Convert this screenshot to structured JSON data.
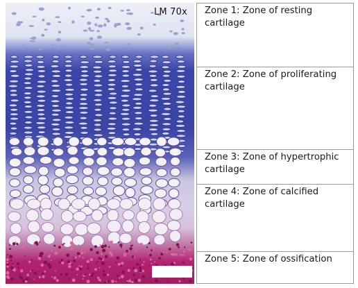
{
  "micrograph": {
    "magnification_label": "LM 70x"
  },
  "zones": [
    {
      "label": "Zone 1: Zone of resting cartilage"
    },
    {
      "label": "Zone 2: Zone of proliferating cartilage"
    },
    {
      "label": "Zone 3: Zone of hypertrophic cartilage"
    },
    {
      "label": "Zone 4: Zone of calcified cartilage"
    },
    {
      "label": "Zone 5: Zone of ossification"
    }
  ],
  "colors": {
    "resting": "#dfe4f2",
    "stain_blue": "#3b47a8",
    "lacuna": "#f4f2f8",
    "ossification": "#b3246e",
    "border": "#9a9a9a"
  }
}
